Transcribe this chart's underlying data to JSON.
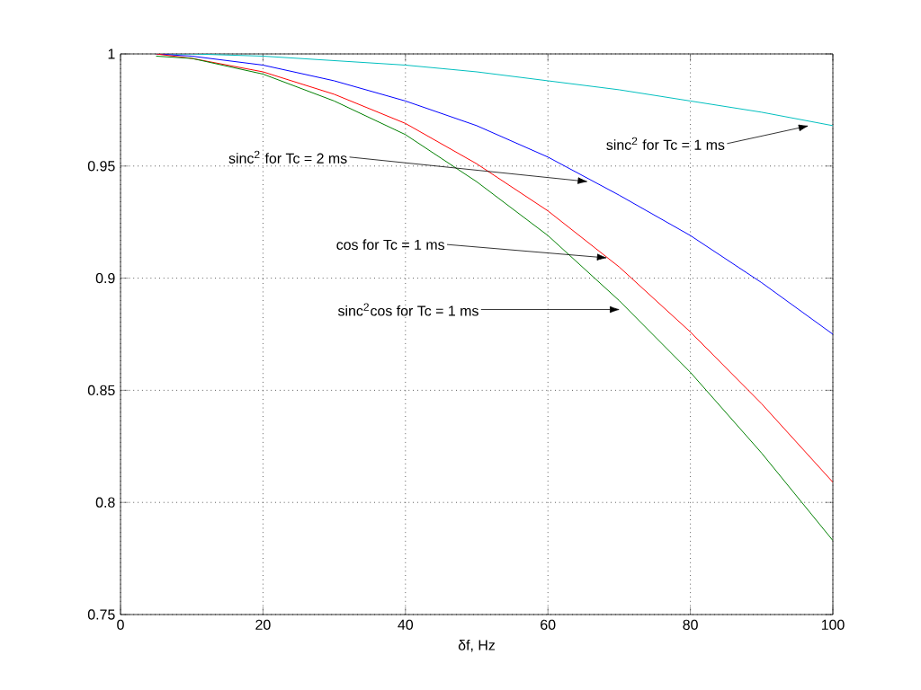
{
  "chart_data": {
    "type": "line",
    "xlabel": "δf, Hz",
    "x": [
      5,
      10,
      20,
      30,
      40,
      50,
      60,
      70,
      80,
      90,
      100
    ],
    "series": [
      {
        "color": "#00bfbf",
        "values": [
          1.0,
          1.0,
          0.999,
          0.997,
          0.995,
          0.992,
          0.988,
          0.984,
          0.979,
          0.974,
          0.968
        ]
      },
      {
        "color": "#0000ff",
        "values": [
          1.0,
          0.999,
          0.995,
          0.988,
          0.979,
          0.968,
          0.954,
          0.937,
          0.919,
          0.898,
          0.875
        ]
      },
      {
        "color": "#ff0000",
        "values": [
          1.0,
          0.998,
          0.992,
          0.982,
          0.969,
          0.951,
          0.93,
          0.905,
          0.876,
          0.844,
          0.809
        ]
      },
      {
        "color": "#008000",
        "values": [
          0.999,
          0.998,
          0.991,
          0.979,
          0.964,
          0.943,
          0.919,
          0.89,
          0.858,
          0.822,
          0.783
        ]
      }
    ],
    "annotations": [
      {
        "text": "sinc$^{2}$ for Tc = 1 ms",
        "x": 96.7,
        "y": 0.968
      },
      {
        "text": "sinc$^{2}$ for Tc = 2 ms",
        "x": 65.7,
        "y": 0.943
      },
      {
        "text": "cos for Tc = 1 ms",
        "x": 68.4,
        "y": 0.909
      },
      {
        "text": "sinc$^{2}$cos for Tc = 1 ms",
        "x": 70.2,
        "y": 0.886
      }
    ],
    "xlim": [
      0,
      100
    ],
    "ylim": [
      0.75,
      1
    ],
    "xticks": [
      0,
      20,
      40,
      60,
      80,
      100
    ],
    "yticks": [
      0.75,
      0.8,
      0.85,
      0.9,
      0.95,
      1
    ],
    "grid": true,
    "marker": "none",
    "line_style": "solid"
  }
}
